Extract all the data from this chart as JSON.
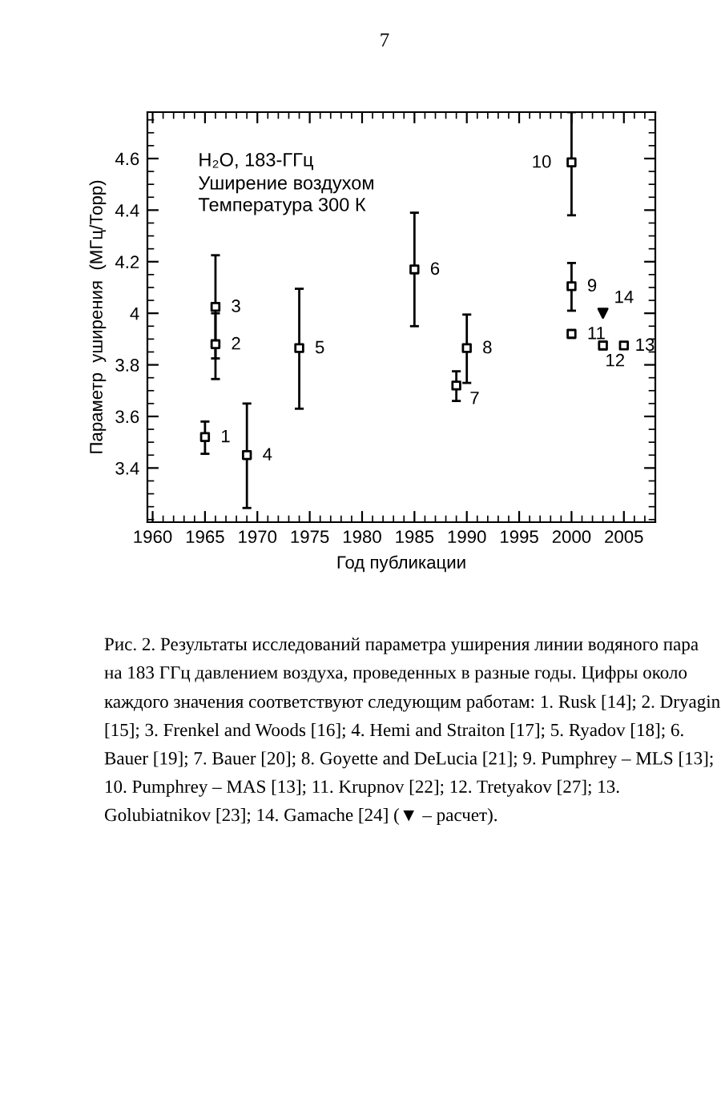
{
  "chart_data": {
    "type": "scatter",
    "title": "H₂O, 183-ГГц",
    "subtitle": "Уширение воздухом\nТемпература 300 К",
    "xlabel": "Год публикации",
    "ylabel": "Параметр  уширения  (МГц/Торр)",
    "series": [
      {
        "color": "#000000",
        "marker": "square",
        "x": [
          1965,
          1966,
          1966,
          1969,
          1974,
          1985,
          1989,
          1990,
          2000,
          2000,
          2000,
          2003,
          2005
        ],
        "values": [
          3.52,
          3.88,
          4.025,
          3.45,
          3.865,
          4.17,
          3.72,
          3.865,
          4.105,
          4.585,
          3.92,
          3.875,
          3.875
        ],
        "errors": [
          [
            3.455,
            3.58
          ],
          [
            3.745,
            4.0
          ],
          [
            3.825,
            4.225
          ],
          [
            3.245,
            3.65
          ],
          [
            3.63,
            4.095
          ],
          [
            3.95,
            4.39
          ],
          [
            3.66,
            3.775
          ],
          [
            3.73,
            3.995
          ],
          [
            4.01,
            4.195
          ],
          [
            4.38,
            4.78
          ],
          [
            3.905,
            3.935
          ],
          [
            3.86,
            3.89
          ],
          null
        ]
      },
      {
        "color": "#000000",
        "marker": "triangle",
        "x": [
          2003
        ],
        "values": [
          4.0
        ]
      }
    ],
    "xlim": [
      1959.5,
      2008
    ],
    "xticks": [
      1960,
      1965,
      1970,
      1975,
      1980,
      1985,
      1990,
      1995,
      2000,
      2005
    ],
    "ylim": [
      3.19,
      4.78
    ],
    "yticks": [
      3.4,
      3.6,
      3.8,
      4,
      4.2,
      4.4,
      4.6
    ],
    "grid": false,
    "legend": false,
    "annotations": [
      "7",
      {
        "text": "1",
        "x": 1965,
        "y": 3.52
      },
      {
        "text": "2",
        "x": 1966,
        "y": 3.88
      },
      {
        "text": "3",
        "x": 1966,
        "y": 4.025
      },
      {
        "text": "4",
        "x": 1969,
        "y": 3.45
      },
      {
        "text": "5",
        "x": 1974,
        "y": 3.865
      },
      {
        "text": "6",
        "x": 1985,
        "y": 4.17
      },
      {
        "text": "7",
        "x": 1989,
        "y": 3.72
      },
      {
        "text": "8",
        "x": 1990,
        "y": 3.865
      },
      {
        "text": "9",
        "x": 2000,
        "y": 4.105
      },
      {
        "text": "10",
        "x": 2000,
        "y": 4.585
      },
      {
        "text": "11",
        "x": 2000,
        "y": 3.92
      },
      {
        "text": "12",
        "x": 2003,
        "y": 3.875
      },
      {
        "text": "13",
        "x": 2005,
        "y": 3.875
      },
      {
        "text": "14",
        "x": 2003,
        "y": 4.0
      },
      "Рис. 2. Результаты исследований параметра уширения линии водяного пара на 183 ГГц давлением воздуха, проведенных в разные годы. Цифры около каждого значения соответствуют следующим работам: 1. Rusk [14]; 2. Dryagin [15]; 3. Frenkel and Woods [16]; 4. Hemi and Straiton [17]; 5. Ryadov [18]; 6. Bauer [19]; 7. Bauer [20]; 8. Goyette and DeLucia [21]; 9. Pumphrey – MLS [13]; 10. Pumphrey – MAS [13]; 11. Krupnov [22]; 12. Tretyakov [27]; 13. Golubiatnikov [23]; 14. Gamache [24] (▼ – расчет)."
    ]
  }
}
